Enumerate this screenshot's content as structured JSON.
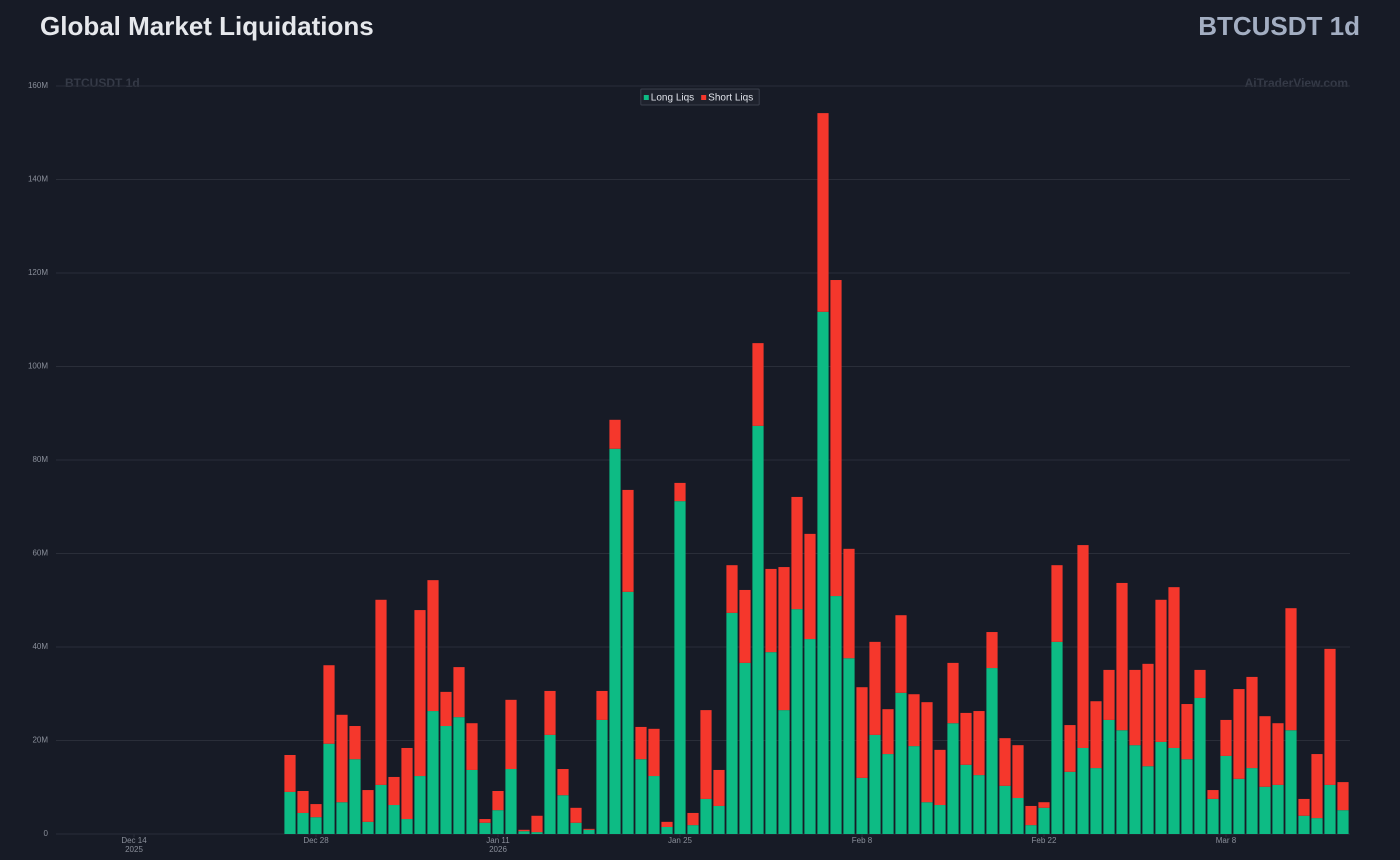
{
  "header": {
    "title": "Global Market Liquidations",
    "symbol": "BTCUSDT 1d"
  },
  "chart_data": {
    "type": "stacked-bar",
    "watermark_left": "BTCUSDT 1d",
    "watermark_right": "AiTraderView.com",
    "x": [
      "2025-12-26",
      "2025-12-27",
      "2025-12-28",
      "2025-12-29",
      "2025-12-30",
      "2025-12-31",
      "2026-01-01",
      "2026-01-02",
      "2026-01-03",
      "2026-01-04",
      "2026-01-05",
      "2026-01-06",
      "2026-01-07",
      "2026-01-08",
      "2026-01-09",
      "2026-01-10",
      "2026-01-11",
      "2026-01-12",
      "2026-01-13",
      "2026-01-14",
      "2026-01-15",
      "2026-01-16",
      "2026-01-17",
      "2026-01-18",
      "2026-01-19",
      "2026-01-20",
      "2026-01-21",
      "2026-01-22",
      "2026-01-23",
      "2026-01-24",
      "2026-01-25",
      "2026-01-26",
      "2026-01-27",
      "2026-01-28",
      "2026-01-29",
      "2026-01-30",
      "2026-01-31",
      "2026-02-01",
      "2026-02-02",
      "2026-02-03",
      "2026-02-04",
      "2026-02-05",
      "2026-02-06",
      "2026-02-07",
      "2026-02-08",
      "2026-02-09",
      "2026-02-10",
      "2026-02-11",
      "2026-02-12",
      "2026-02-13",
      "2026-02-14",
      "2026-02-15",
      "2026-02-16",
      "2026-02-17",
      "2026-02-18",
      "2026-02-19",
      "2026-02-20",
      "2026-02-21",
      "2026-02-22",
      "2026-02-23",
      "2026-02-24",
      "2026-02-25",
      "2026-02-26",
      "2026-02-27",
      "2026-02-28",
      "2026-03-01",
      "2026-03-02",
      "2026-03-03",
      "2026-03-04",
      "2026-03-05",
      "2026-03-06",
      "2026-03-07",
      "2026-03-08",
      "2026-03-09",
      "2026-03-10",
      "2026-03-11",
      "2026-03-12",
      "2026-03-13",
      "2026-03-14",
      "2026-03-15",
      "2026-03-16",
      "2026-03-17"
    ],
    "series": [
      {
        "name": "Long Liqs",
        "color": "#0dbb84",
        "values": [
          9.0,
          4.5,
          3.6,
          19.3,
          6.8,
          16.0,
          2.6,
          10.5,
          6.2,
          3.2,
          12.4,
          26.3,
          23.1,
          25.0,
          13.7,
          2.4,
          5.1,
          13.9,
          0.6,
          0.4,
          21.2,
          8.3,
          2.4,
          0.9,
          24.4,
          82.4,
          51.8,
          16.0,
          12.4,
          1.5,
          71.2,
          1.9,
          7.5,
          6.0,
          47.3,
          36.6,
          87.3,
          38.9,
          26.5,
          48.1,
          41.7,
          111.7,
          50.9,
          37.6,
          12.0,
          21.2,
          17.1,
          30.2,
          18.8,
          6.8,
          6.2,
          23.7,
          14.8,
          12.6,
          35.5,
          10.3,
          7.7,
          1.9,
          5.6,
          41.1,
          13.3,
          18.4,
          14.1,
          24.4,
          22.2,
          19.0,
          14.5,
          19.7,
          18.4,
          16.0,
          29.1,
          7.5,
          16.7,
          11.8,
          14.1,
          10.1,
          10.5,
          22.2,
          3.9,
          3.4,
          10.5,
          5.1
        ]
      },
      {
        "name": "Short Liqs",
        "color": "#f5372c",
        "values": [
          7.9,
          4.7,
          2.8,
          16.8,
          18.7,
          7.1,
          6.8,
          39.6,
          6.0,
          15.2,
          35.5,
          28.0,
          7.3,
          10.7,
          10.0,
          0.8,
          4.1,
          14.8,
          0.3,
          3.5,
          9.4,
          5.6,
          3.2,
          0.2,
          6.2,
          6.2,
          21.8,
          6.9,
          10.1,
          1.1,
          3.9,
          2.6,
          19.0,
          7.7,
          10.2,
          15.6,
          17.7,
          17.8,
          30.6,
          24.0,
          22.5,
          42.5,
          67.6,
          23.4,
          19.4,
          19.9,
          9.6,
          16.6,
          11.1,
          21.4,
          11.8,
          12.9,
          11.1,
          13.7,
          7.7,
          10.2,
          11.3,
          4.1,
          1.2,
          16.4,
          10.0,
          43.4,
          14.3,
          10.7,
          31.5,
          16.1,
          21.9,
          30.4,
          34.4,
          11.8,
          6.0,
          1.9,
          7.7,
          19.2,
          19.5,
          15.1,
          13.2,
          26.1,
          3.6,
          13.7,
          29.1,
          6.0
        ]
      }
    ],
    "xlim": [
      "2025-12-08",
      "2026-03-18"
    ],
    "xticks": [
      {
        "value": "2025-12-14",
        "label": "Dec 14",
        "year": "2025"
      },
      {
        "value": "2025-12-28",
        "label": "Dec 28"
      },
      {
        "value": "2026-01-11",
        "label": "Jan 11",
        "year": "2026"
      },
      {
        "value": "2026-01-25",
        "label": "Jan 25"
      },
      {
        "value": "2026-02-08",
        "label": "Feb 8"
      },
      {
        "value": "2026-02-22",
        "label": "Feb 22"
      },
      {
        "value": "2026-03-08",
        "label": "Mar 8"
      }
    ],
    "ylim": [
      0,
      160
    ],
    "yticks": [
      0,
      {
        "value": 20,
        "label": "20M"
      },
      {
        "value": 40,
        "label": "40M"
      },
      {
        "value": 60,
        "label": "60M"
      },
      {
        "value": 80,
        "label": "80M"
      },
      {
        "value": 100,
        "label": "100M"
      },
      {
        "value": 120,
        "label": "120M"
      },
      {
        "value": 140,
        "label": "140M"
      },
      {
        "value": 160,
        "label": "160M"
      }
    ],
    "grid": true,
    "legend": "top"
  }
}
